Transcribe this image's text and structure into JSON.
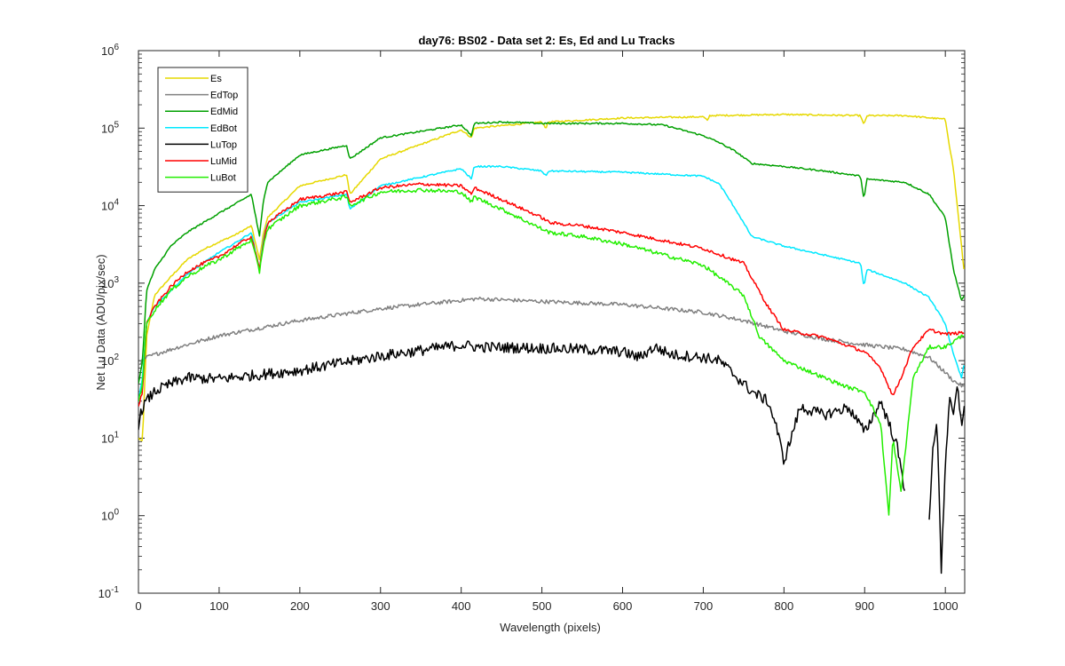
{
  "chart_data": {
    "type": "line",
    "title": "day76: BS02 - Data set 2: Es, Ed and Lu Tracks",
    "xlabel": "Wavelength (pixels)",
    "ylabel": "Net Lu Data (ADU/pix/sec)",
    "xlim": [
      0,
      1024
    ],
    "ylim": [
      0.1,
      1000000
    ],
    "yscale": "log",
    "grid": false,
    "legend_position": "top-left",
    "x_ticks": [
      "0",
      "100",
      "200",
      "300",
      "400",
      "500",
      "600",
      "700",
      "800",
      "900",
      "1000"
    ],
    "y_ticks": [
      {
        "base": "10",
        "exp": "-1",
        "value": 0.1
      },
      {
        "base": "10",
        "exp": "0",
        "value": 1
      },
      {
        "base": "10",
        "exp": "1",
        "value": 10
      },
      {
        "base": "10",
        "exp": "2",
        "value": 100
      },
      {
        "base": "10",
        "exp": "3",
        "value": 1000
      },
      {
        "base": "10",
        "exp": "4",
        "value": 10000
      },
      {
        "base": "10",
        "exp": "5",
        "value": 100000
      },
      {
        "base": "10",
        "exp": "6",
        "value": 1000000
      }
    ],
    "series": [
      {
        "name": "Es",
        "color": "#e6d800",
        "x": [
          0,
          5,
          10,
          20,
          40,
          60,
          80,
          100,
          120,
          140,
          150,
          155,
          160,
          200,
          258,
          262,
          300,
          400,
          413,
          416,
          500,
          505,
          508,
          600,
          700,
          705,
          708,
          800,
          895,
          899,
          903,
          950,
          1000,
          1005,
          1010,
          1020,
          1024
        ],
        "y": [
          10,
          9,
          200,
          700,
          1200,
          2000,
          2700,
          3400,
          4200,
          5500,
          2000,
          4500,
          7000,
          18000,
          25000,
          14000,
          40000,
          95000,
          75000,
          100000,
          120000,
          100000,
          120000,
          135000,
          140000,
          125000,
          145000,
          150000,
          145000,
          110000,
          145000,
          145000,
          130000,
          60000,
          30000,
          3000,
          1200
        ]
      },
      {
        "name": "EdTop",
        "color": "#808080",
        "x": [
          0,
          10,
          20,
          50,
          100,
          200,
          300,
          400,
          420,
          450,
          500,
          600,
          700,
          750,
          800,
          850,
          900,
          950,
          980,
          1000,
          1010,
          1024
        ],
        "y": [
          90,
          110,
          120,
          150,
          210,
          330,
          470,
          600,
          630,
          610,
          580,
          530,
          420,
          330,
          240,
          190,
          160,
          140,
          110,
          70,
          55,
          45
        ]
      },
      {
        "name": "EdMid",
        "color": "#00a000",
        "x": [
          0,
          5,
          10,
          20,
          40,
          60,
          80,
          100,
          120,
          140,
          150,
          155,
          160,
          200,
          258,
          262,
          300,
          400,
          413,
          416,
          450,
          500,
          600,
          650,
          700,
          720,
          740,
          760,
          800,
          850,
          895,
          899,
          903,
          950,
          980,
          1000,
          1010,
          1020,
          1024
        ],
        "y": [
          50,
          100,
          800,
          1500,
          3000,
          4500,
          6000,
          8000,
          10500,
          14000,
          4000,
          12000,
          20000,
          45000,
          60000,
          40000,
          75000,
          110000,
          80000,
          115000,
          120000,
          115000,
          115000,
          110000,
          80000,
          65000,
          50000,
          35000,
          32000,
          28000,
          24000,
          12000,
          22000,
          20000,
          14000,
          7000,
          1500,
          600,
          700
        ]
      },
      {
        "name": "EdBot",
        "color": "#00e8ff",
        "x": [
          0,
          5,
          10,
          20,
          40,
          60,
          80,
          100,
          120,
          140,
          150,
          155,
          160,
          200,
          258,
          262,
          300,
          400,
          413,
          416,
          450,
          500,
          505,
          508,
          600,
          700,
          720,
          740,
          760,
          800,
          850,
          895,
          899,
          903,
          950,
          980,
          1000,
          1010,
          1020,
          1024
        ],
        "y": [
          30,
          60,
          300,
          500,
          800,
          1300,
          1800,
          2500,
          3300,
          4500,
          1500,
          3800,
          6000,
          11000,
          14000,
          9000,
          18000,
          30000,
          22000,
          32000,
          32000,
          28000,
          24000,
          28000,
          27000,
          24000,
          19000,
          9000,
          4000,
          3000,
          2300,
          1800,
          900,
          1500,
          1000,
          650,
          300,
          120,
          60,
          100
        ]
      },
      {
        "name": "LuTop",
        "color": "#000000",
        "x": [
          0,
          5,
          10,
          20,
          40,
          60,
          100,
          200,
          300,
          400,
          420,
          500,
          550,
          600,
          620,
          640,
          660,
          700,
          720,
          760,
          780,
          790,
          800,
          820,
          850,
          880,
          900,
          920,
          940,
          950
        ],
        "y": [
          15,
          25,
          30,
          40,
          50,
          60,
          58,
          75,
          115,
          160,
          150,
          145,
          140,
          130,
          110,
          150,
          120,
          110,
          100,
          40,
          30,
          15,
          5,
          25,
          20,
          25,
          12,
          30,
          8,
          2
        ],
        "x2": [
          980,
          985,
          990,
          995,
          1000,
          1005,
          1010,
          1015,
          1020,
          1024
        ],
        "y2": [
          1,
          8,
          15,
          0.2,
          5,
          30,
          20,
          45,
          15,
          30
        ]
      },
      {
        "name": "LuMid",
        "color": "#ff0000",
        "x": [
          0,
          5,
          10,
          20,
          40,
          60,
          80,
          100,
          120,
          140,
          150,
          155,
          160,
          200,
          258,
          262,
          300,
          350,
          400,
          413,
          416,
          450,
          500,
          510,
          550,
          600,
          700,
          750,
          780,
          800,
          850,
          900,
          920,
          935,
          945,
          960,
          980,
          1000,
          1024
        ],
        "y": [
          25,
          40,
          300,
          500,
          900,
          1400,
          1800,
          2200,
          3000,
          4000,
          1500,
          3500,
          6000,
          12000,
          15000,
          11000,
          17000,
          19000,
          18000,
          14000,
          17000,
          12000,
          7000,
          6000,
          5500,
          4500,
          2800,
          1800,
          500,
          250,
          200,
          130,
          80,
          35,
          60,
          150,
          250,
          220,
          230
        ]
      },
      {
        "name": "LuBot",
        "color": "#22ee00",
        "x": [
          0,
          5,
          10,
          20,
          40,
          60,
          80,
          100,
          120,
          140,
          150,
          155,
          160,
          200,
          258,
          262,
          300,
          350,
          400,
          413,
          416,
          450,
          500,
          510,
          550,
          600,
          700,
          750,
          770,
          800,
          850,
          880,
          900,
          920,
          930,
          935,
          945,
          960,
          980,
          1000,
          1024
        ],
        "y": [
          30,
          50,
          300,
          450,
          800,
          1200,
          1600,
          2000,
          2700,
          3600,
          1400,
          3200,
          5000,
          10000,
          13000,
          10000,
          15000,
          16000,
          15000,
          11000,
          13000,
          9000,
          5000,
          4500,
          4000,
          3200,
          1700,
          700,
          200,
          100,
          60,
          45,
          40,
          15,
          1,
          10,
          2,
          60,
          150,
          150,
          220
        ]
      }
    ]
  }
}
